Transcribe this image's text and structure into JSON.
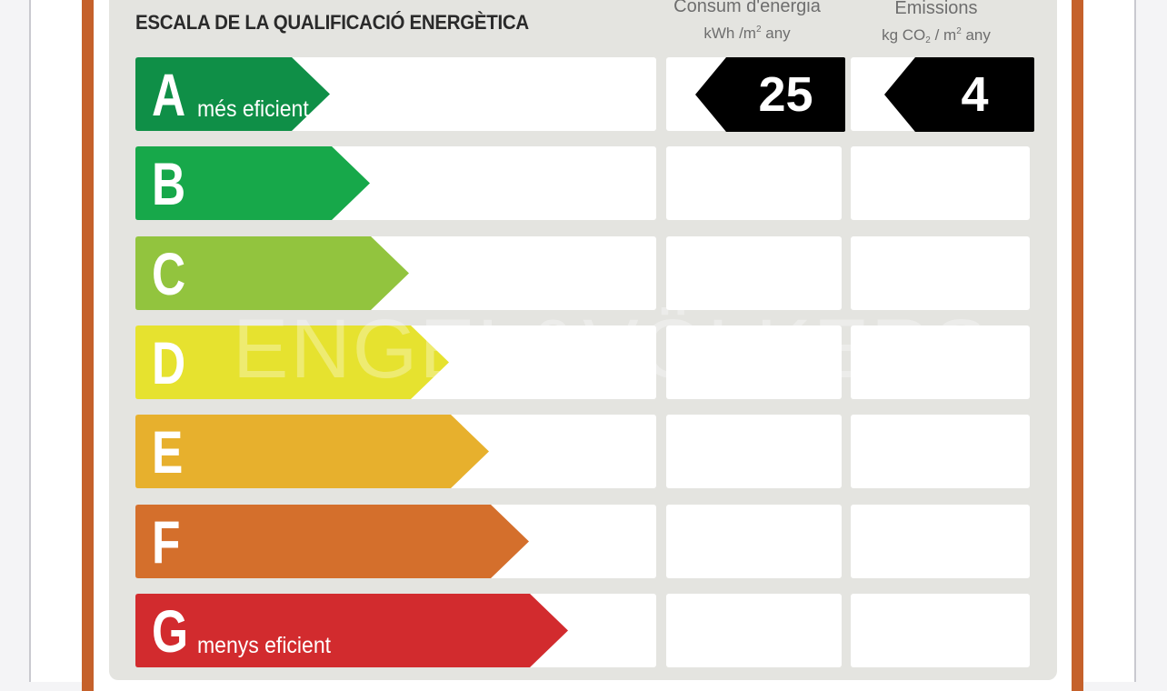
{
  "label": {
    "title": "ESCALA DE LA QUALIFICACIÓ ENERGÈTICA",
    "consum_heading": "Consum d'energia",
    "consum_unit_pre": "kWh /m",
    "consum_unit_sup": "2",
    "consum_unit_post": " any",
    "emissions_heading": "Emissions",
    "emissions_unit_pre": "kg CO",
    "emissions_unit_sub": "2",
    "emissions_unit_mid": " / m",
    "emissions_unit_sup": "2",
    "emissions_unit_post": " any",
    "watermark": "ENGEL&VÖLKERS"
  },
  "classes": [
    {
      "letter": "A",
      "caption": "més eficient",
      "color": "#0f8f47"
    },
    {
      "letter": "B",
      "caption": "",
      "color": "#17a84a"
    },
    {
      "letter": "C",
      "caption": "",
      "color": "#92c43e"
    },
    {
      "letter": "D",
      "caption": "",
      "color": "#e6e22f"
    },
    {
      "letter": "E",
      "caption": "",
      "color": "#e7b02d"
    },
    {
      "letter": "F",
      "caption": "",
      "color": "#d46f2c"
    },
    {
      "letter": "G",
      "caption": "menys eficient",
      "color": "#d22b2e"
    }
  ],
  "rating": {
    "class": "A",
    "consum_value": "25",
    "emissions_value": "4",
    "indicator_color": "#000000"
  },
  "colors": {
    "frame": "#c5612b",
    "panel": "#e4e4e0"
  }
}
